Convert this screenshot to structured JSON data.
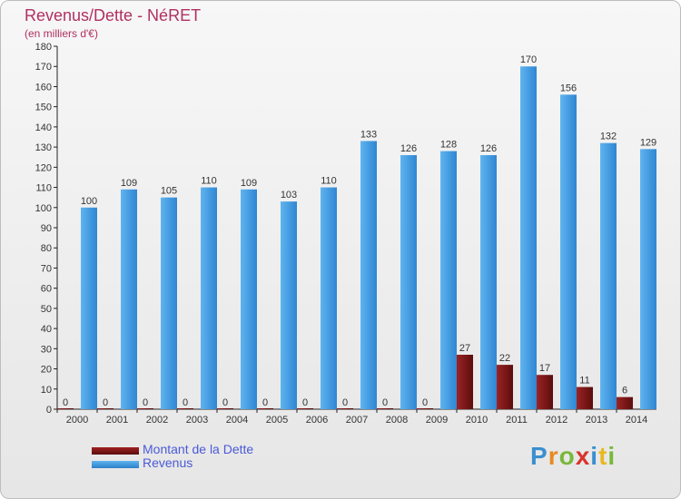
{
  "chart_data": {
    "type": "bar",
    "title": "Revenus/Dette - NéRET",
    "subtitle": "(en milliers d'€)",
    "categories": [
      "2000",
      "2001",
      "2002",
      "2003",
      "2004",
      "2005",
      "2006",
      "2007",
      "2008",
      "2009",
      "2010",
      "2011",
      "2012",
      "2013",
      "2014"
    ],
    "series": [
      {
        "name": "Montant de la Dette",
        "color": "#8b1a1a",
        "values": [
          0,
          0,
          0,
          0,
          0,
          0,
          0,
          0,
          0,
          0,
          27,
          22,
          17,
          11,
          6
        ]
      },
      {
        "name": "Revenus",
        "color": "#3f9de6",
        "values": [
          100,
          109,
          105,
          110,
          109,
          103,
          110,
          133,
          126,
          128,
          126,
          170,
          156,
          132,
          129
        ]
      }
    ],
    "ylim": [
      0,
      180
    ],
    "ytick_step": 10,
    "grid": false,
    "legend_position": "bottom-left"
  },
  "logo": {
    "text": "Proxiti"
  }
}
